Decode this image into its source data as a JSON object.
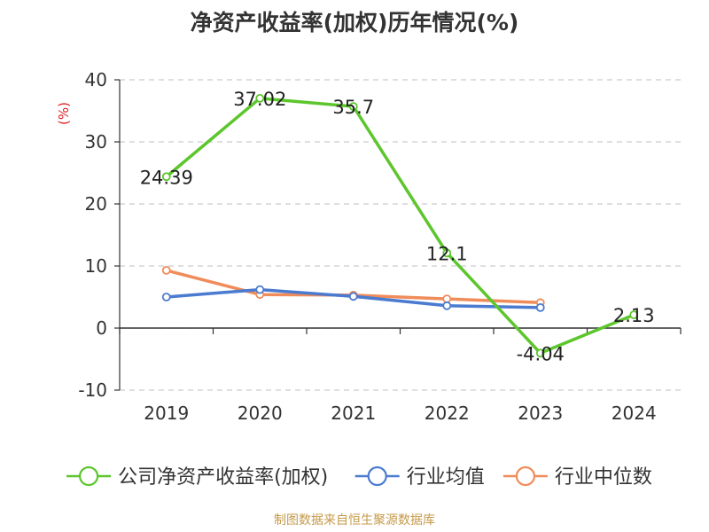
{
  "chart_data": {
    "type": "line",
    "title": "净资产收益率(加权)历年情况(%)",
    "ylabel": "(%)",
    "categories": [
      "2019",
      "2020",
      "2021",
      "2022",
      "2023",
      "2024"
    ],
    "ylim": [
      -10,
      40
    ],
    "yticks": [
      -10,
      0,
      10,
      20,
      30,
      40
    ],
    "grid": true,
    "legend_position": "bottom",
    "series": [
      {
        "name": "公司净资产收益率(加权)",
        "color": "#5cc62c",
        "values": [
          24.39,
          37.02,
          35.7,
          12.1,
          -4.04,
          2.13
        ],
        "labels": [
          "24.39",
          "37.02",
          "35.7",
          "12.1",
          "-4.04",
          "2.13"
        ]
      },
      {
        "name": "行业均值",
        "color": "#4a7bd0",
        "values": [
          5.0,
          6.2,
          5.1,
          3.6,
          3.3,
          null
        ]
      },
      {
        "name": "行业中位数",
        "color": "#f08c5a",
        "values": [
          9.3,
          5.4,
          5.3,
          4.7,
          4.1,
          null
        ]
      }
    ]
  },
  "footer": "制图数据来自恒生聚源数据库"
}
